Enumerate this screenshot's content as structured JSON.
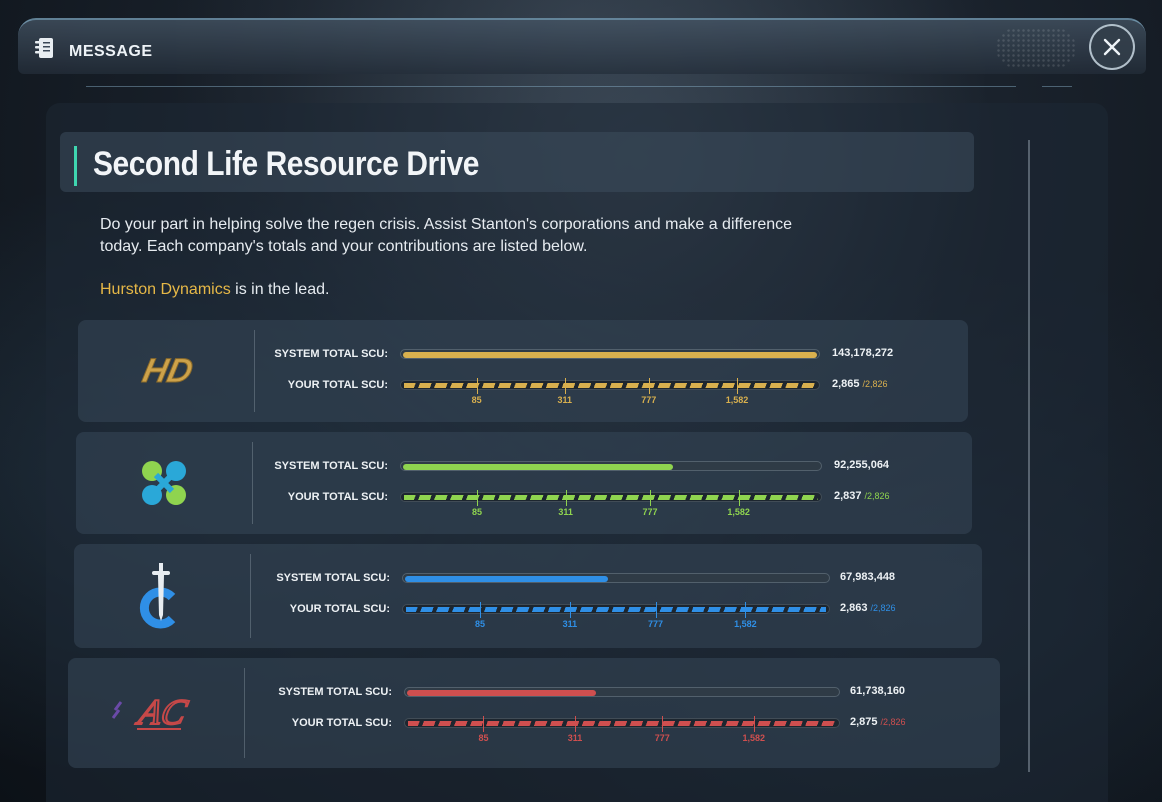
{
  "window": {
    "title": "MESSAGE",
    "header_icon": "document-icon",
    "close_icon": "close-icon"
  },
  "message": {
    "title": "Second Life Resource Drive",
    "description": "Do your part in helping solve the regen crisis. Assist Stanton's corporations and make a difference today. Each company's totals and your contributions are listed below.",
    "leader_name": "Hurston Dynamics",
    "leader_suffix": " is in the lead."
  },
  "labels": {
    "system_total": "SYSTEM TOTAL SCU:",
    "your_total": "YOUR TOTAL SCU:"
  },
  "companies": [
    {
      "logo": "hurston-logo",
      "color": "#d9b04e",
      "system_total": "143,178,272",
      "system_fill": 1.0,
      "your_total": "2,865",
      "your_cap": "/2,826",
      "milestones": [
        "85",
        "311",
        "777",
        "1,582"
      ]
    },
    {
      "logo": "microtech-logo",
      "color": "#8fd44f",
      "system_total": "92,255,064",
      "system_fill": 0.65,
      "your_total": "2,837",
      "your_cap": "/2,826",
      "milestones": [
        "85",
        "311",
        "777",
        "1,582"
      ]
    },
    {
      "logo": "crusader-logo",
      "color": "#2f8fe6",
      "system_total": "67,983,448",
      "system_fill": 0.48,
      "your_total": "2,863",
      "your_cap": "/2,826",
      "milestones": [
        "85",
        "311",
        "777",
        "1,582"
      ]
    },
    {
      "logo": "arccorp-logo",
      "color": "#cf4f4f",
      "system_total": "61,738,160",
      "system_fill": 0.44,
      "your_total": "2,875",
      "your_cap": "/2,826",
      "milestones": [
        "85",
        "311",
        "777",
        "1,582"
      ]
    }
  ]
}
